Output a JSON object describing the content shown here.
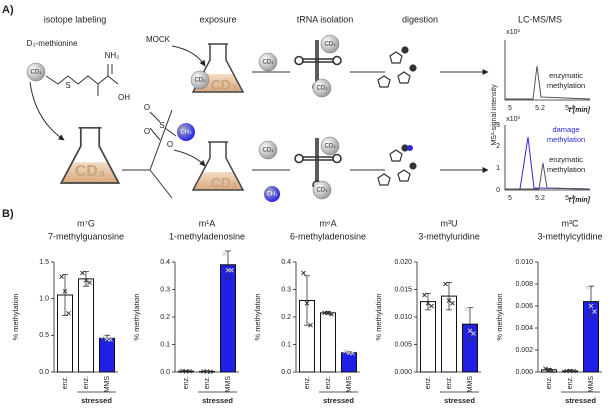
{
  "panel_a": {
    "label": "A)",
    "steps": [
      "isotope labeling",
      "exposure",
      "tRNA isolation",
      "digestion",
      "LC-MS/MS"
    ],
    "d3_methionine": "D₃-methionine",
    "nh2": "NH₂",
    "s": "S",
    "oh": "OH",
    "cd3": "CD₃",
    "mock": "MOCK",
    "ch3": "CH₃",
    "o": "O",
    "y_label": "MS²-signal intensity",
    "multiplier": "x10³",
    "time_label": "t [min]",
    "time_ticks": [
      "5",
      "5.2",
      "5.4"
    ],
    "intensity_ticks": [
      "0",
      "1",
      "2",
      "3"
    ],
    "enzymatic": [
      "enzymatic",
      "methylation"
    ],
    "damage": [
      "damage",
      "methylation"
    ]
  },
  "panel_b_label": "B)",
  "chart_data": [
    {
      "type": "bar",
      "title": "m⁷G",
      "subtitle": "7-methylguanosine",
      "y_label": "% methylation",
      "group_label": "stressed",
      "categories": [
        "enz.",
        "enz.",
        "MMS"
      ],
      "values": [
        1.05,
        1.27,
        0.46
      ],
      "errors": [
        0.28,
        0.1,
        0.04
      ],
      "points": [
        [
          1.3,
          1.1,
          0.8
        ],
        [
          1.35,
          1.25,
          1.22
        ],
        [
          0.48,
          0.45,
          0.44
        ]
      ],
      "colors": [
        "#ffffff",
        "#ffffff",
        "#1f1fe6"
      ],
      "ylim": [
        0,
        1.5
      ],
      "yticks": [
        {
          "value": 0,
          "label": "0.0"
        },
        0.5,
        {
          "value": 1,
          "label": "1.0"
        },
        1.5
      ]
    },
    {
      "type": "bar",
      "title": "m¹A",
      "subtitle": "1-methyladenosine",
      "y_label": "% methylation",
      "group_label": "stressed",
      "categories": [
        "enz.",
        "enz.",
        "MMS"
      ],
      "values": [
        0.003,
        0.002,
        0.39
      ],
      "errors": [
        0.002,
        0.001,
        0.05
      ],
      "points": [
        [
          0.004,
          0.002,
          0.003
        ],
        [
          0.002,
          0.002,
          0.001
        ],
        [
          0.43,
          0.37,
          0.37
        ]
      ],
      "colors": [
        "#ffffff",
        "#ffffff",
        "#1f1fe6"
      ],
      "ylim": [
        0,
        0.4
      ],
      "yticks": [
        {
          "value": 0,
          "label": "0.0"
        },
        0.1,
        0.2,
        0.3,
        0.4
      ]
    },
    {
      "type": "bar",
      "title": "m⁶A",
      "subtitle": "6-methyladenosine",
      "y_label": "% methylation",
      "group_label": "stressed",
      "categories": [
        "enz.",
        "enz.",
        "MMS"
      ],
      "values": [
        0.26,
        0.215,
        0.07
      ],
      "errors": [
        0.09,
        0.005,
        0.005
      ],
      "points": [
        [
          0.36,
          0.25,
          0.17
        ],
        [
          0.215,
          0.215,
          0.21
        ],
        [
          0.075,
          0.07,
          0.068
        ]
      ],
      "colors": [
        "#ffffff",
        "#ffffff",
        "#1f1fe6"
      ],
      "ylim": [
        0,
        0.4
      ],
      "yticks": [
        {
          "value": 0,
          "label": "0.0"
        },
        0.1,
        0.2,
        0.3,
        0.4
      ]
    },
    {
      "type": "bar",
      "title": "m³U",
      "subtitle": "3-methyluridine",
      "y_label": "% methylation",
      "group_label": "stressed",
      "categories": [
        "enz.",
        "enz.",
        "MMS"
      ],
      "values": [
        0.0128,
        0.0138,
        0.0087
      ],
      "errors": [
        0.0015,
        0.0025,
        0.003
      ],
      "points": [
        [
          0.014,
          0.0125,
          0.012
        ],
        [
          0.016,
          0.013,
          0.0125
        ],
        [
          0.0115,
          0.0075,
          0.007
        ]
      ],
      "colors": [
        "#ffffff",
        "#ffffff",
        "#1f1fe6"
      ],
      "ylim": [
        0,
        0.02
      ],
      "yticks": [
        {
          "value": 0,
          "label": "0.000"
        },
        0.005,
        {
          "value": 0.01,
          "label": "0.010"
        },
        0.015,
        {
          "value": 0.02,
          "label": "0.020"
        }
      ]
    },
    {
      "type": "bar",
      "title": "m³C",
      "subtitle": "3-methylcytidine",
      "y_label": "% methylation",
      "group_label": "stressed",
      "categories": [
        "enz.",
        "enz.",
        "MMS"
      ],
      "values": [
        0.0002,
        0.0001,
        0.0064
      ],
      "errors": [
        0.0001,
        0.0001,
        0.0014
      ],
      "points": [
        [
          0.0003,
          0.0002,
          0.0001
        ],
        [
          0.0001,
          0.0001,
          0.0001
        ],
        [
          0.0077,
          0.006,
          0.0055
        ]
      ],
      "colors": [
        "#ffffff",
        "#ffffff",
        "#1f1fe6"
      ],
      "ylim": [
        0,
        0.01
      ],
      "yticks": [
        {
          "value": 0,
          "label": "0.000"
        },
        0.002,
        0.004,
        0.006,
        0.008,
        {
          "value": 0.01,
          "label": "0.010"
        }
      ]
    }
  ]
}
